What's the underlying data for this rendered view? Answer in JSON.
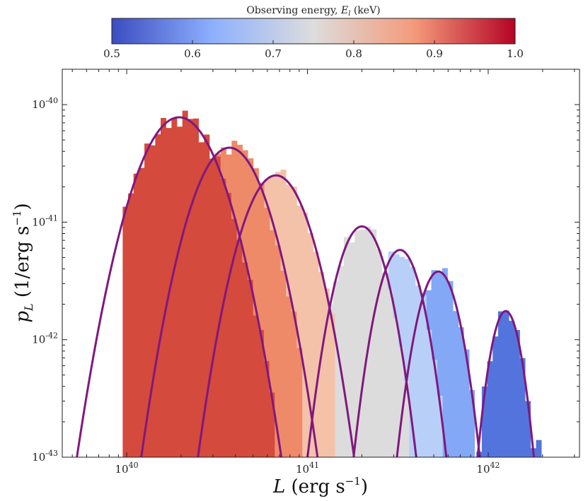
{
  "chart_data": {
    "type": "histogram",
    "colorbar": {
      "title": "Observing energy, E_l (keV)",
      "ticks": [
        "0.5",
        "0.6",
        "0.7",
        "0.8",
        "0.9",
        "1.0"
      ],
      "tick_values": [
        0.5,
        0.6,
        0.7,
        0.8,
        0.9,
        1.0
      ],
      "range": [
        0.5,
        1.0
      ],
      "colormap": "coolwarm"
    },
    "xlabel": "L (erg s^-1)",
    "ylabel": "p_L (1/erg s^-1)",
    "xscale": "log",
    "yscale": "log",
    "xlim": [
      4.4e+39,
      3.2e+42
    ],
    "ylim": [
      1e-43,
      2e-40
    ],
    "x_tick_labels": [
      {
        "base": "10",
        "exp": "40",
        "value": 1e+40
      },
      {
        "base": "10",
        "exp": "41",
        "value": 1e+41
      },
      {
        "base": "10",
        "exp": "42",
        "value": 1e+42
      }
    ],
    "y_tick_labels": [
      {
        "base": "10",
        "exp": "-43",
        "value": 1e-43
      },
      {
        "base": "10",
        "exp": "-42",
        "value": 1e-42
      },
      {
        "base": "10",
        "exp": "-41",
        "value": 1e-41
      },
      {
        "base": "10",
        "exp": "-40",
        "value": 1e-40
      }
    ],
    "series": [
      {
        "energy_keV": 0.98,
        "color": "#d44a3c",
        "peak_L": 1.95e+40,
        "peak_p": 7.8e-41,
        "log_sigma": 0.155,
        "xmin": 9.5e+39,
        "xmax": 6.5e+40
      },
      {
        "energy_keV": 0.92,
        "color": "#ef8a68",
        "peak_L": 3.7e+40,
        "peak_p": 4.3e-41,
        "log_sigma": 0.14,
        "xmin": 1.55e+40,
        "xmax": 9e+40
      },
      {
        "energy_keV": 0.83,
        "color": "#f4c2a8",
        "peak_L": 6.7e+40,
        "peak_p": 2.5e-41,
        "log_sigma": 0.13,
        "xmin": 3.1e+40,
        "xmax": 1.4e+41
      },
      {
        "energy_keV": 0.76,
        "color": "#dcdcdc",
        "peak_L": 2e+41,
        "peak_p": 9.2e-42,
        "log_sigma": 0.1,
        "xmin": 1.05e+41,
        "xmax": 3.5e+41
      },
      {
        "energy_keV": 0.66,
        "color": "#b8d0f8",
        "peak_L": 3.25e+41,
        "peak_p": 5.8e-42,
        "log_sigma": 0.09,
        "xmin": 1.85e+41,
        "xmax": 5.4e+41
      },
      {
        "energy_keV": 0.58,
        "color": "#82a8f6",
        "peak_L": 5.3e+41,
        "peak_p": 3.8e-42,
        "log_sigma": 0.085,
        "xmin": 3.2e+41,
        "xmax": 8.4e+41
      },
      {
        "energy_keV": 0.52,
        "color": "#5474dd",
        "peak_L": 1.25e+42,
        "peak_p": 1.75e-42,
        "log_sigma": 0.065,
        "xmin": 8.6e+41,
        "xmax": 1.9e+42
      }
    ],
    "fit_curve_color": "#80187e"
  }
}
